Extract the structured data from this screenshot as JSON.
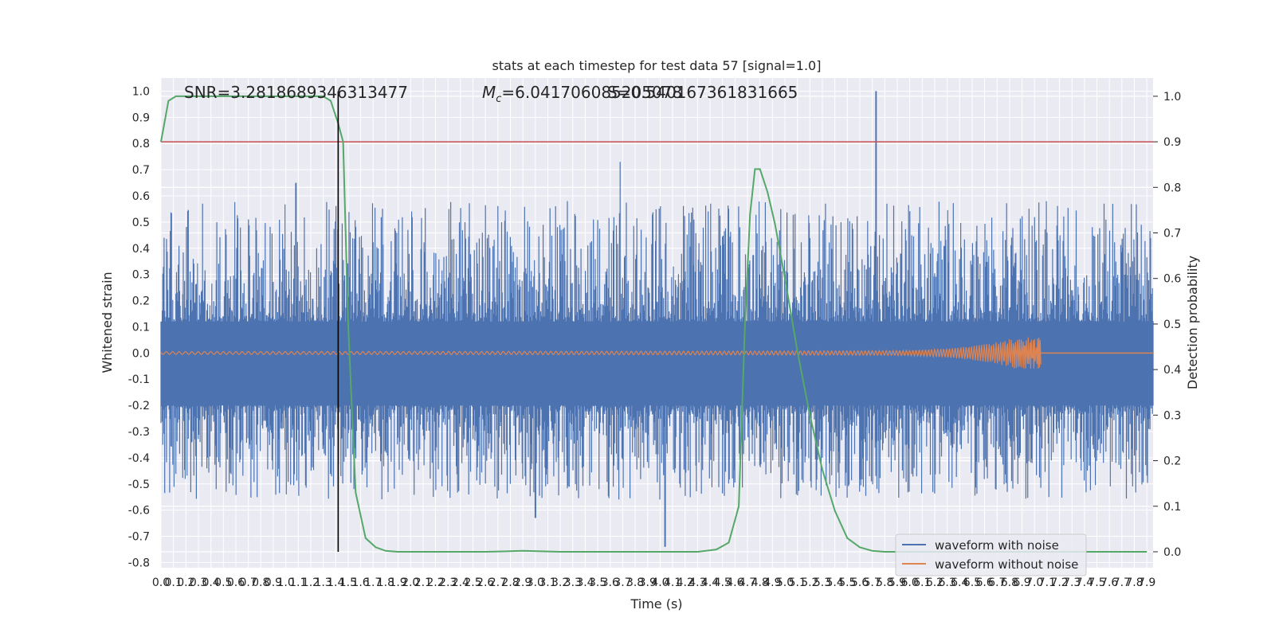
{
  "chart_data": {
    "type": "line",
    "title": "stats at each timestep for test data 57 [signal=1.0]",
    "xlabel": "Time (s)",
    "ylabel": "Whitened strain",
    "y2label": "Detection probability",
    "xlim": [
      0.0,
      7.95
    ],
    "ylim": [
      -0.82,
      1.05
    ],
    "y2lim": [
      -0.035,
      1.04
    ],
    "x_ticks": [
      0.0,
      0.1,
      0.2,
      0.3,
      0.4,
      0.5,
      0.6,
      0.7,
      0.8,
      0.9,
      1.0,
      1.1,
      1.2,
      1.3,
      1.4,
      1.5,
      1.6,
      1.7,
      1.8,
      1.9,
      2.0,
      2.1,
      2.2,
      2.3,
      2.4,
      2.5,
      2.6,
      2.7,
      2.8,
      2.9,
      3.0,
      3.1,
      3.2,
      3.3,
      3.4,
      3.5,
      3.6,
      3.7,
      3.8,
      3.9,
      4.0,
      4.1,
      4.2,
      4.3,
      4.4,
      4.5,
      4.6,
      4.7,
      4.8,
      4.9,
      5.0,
      5.1,
      5.2,
      5.3,
      5.4,
      5.5,
      5.6,
      5.7,
      5.8,
      5.9,
      6.0,
      6.1,
      6.2,
      6.3,
      6.4,
      6.5,
      6.6,
      6.7,
      6.8,
      6.9,
      7.0,
      7.1,
      7.2,
      7.3,
      7.4,
      7.5,
      7.6,
      7.7,
      7.8,
      7.9
    ],
    "y_ticks": [
      -0.8,
      -0.7,
      -0.6,
      -0.5,
      -0.4,
      -0.3,
      -0.2,
      -0.1,
      0.0,
      0.1,
      0.2,
      0.3,
      0.4,
      0.5,
      0.6,
      0.7,
      0.8,
      0.9,
      1.0
    ],
    "y2_ticks": [
      0.0,
      0.1,
      0.2,
      0.3,
      0.4,
      0.5,
      0.6,
      0.7,
      0.8,
      0.9,
      1.0
    ],
    "grid": true,
    "legend_placement": "lower-right",
    "series": [
      {
        "name": "waveform with noise",
        "color": "#4c72b0",
        "axis": "left",
        "kind": "noise",
        "spikes": [
          [
            4.04,
            -0.74
          ],
          [
            5.73,
            1.0
          ],
          [
            3.68,
            0.73
          ],
          [
            1.08,
            0.65
          ],
          [
            3.0,
            -0.63
          ]
        ]
      },
      {
        "name": "waveform without noise",
        "color": "#dd8452",
        "axis": "left",
        "kind": "chirp",
        "end_time": 7.05,
        "end_amplitude": 0.06
      },
      {
        "name": "",
        "color": "#55a868",
        "axis": "right",
        "kind": "probability",
        "x": [
          0.0,
          0.06,
          0.12,
          0.2,
          0.4,
          0.8,
          1.2,
          1.3,
          1.36,
          1.42,
          1.46,
          1.5,
          1.56,
          1.64,
          1.72,
          1.8,
          1.9,
          2.0,
          2.2,
          2.6,
          2.9,
          3.2,
          3.6,
          4.0,
          4.3,
          4.45,
          4.55,
          4.63,
          4.68,
          4.72,
          4.76,
          4.8,
          4.86,
          4.92,
          5.0,
          5.1,
          5.2,
          5.3,
          5.4,
          5.5,
          5.6,
          5.7,
          5.8,
          6.0,
          6.5,
          7.0,
          7.5,
          7.9
        ],
        "y": [
          0.9,
          0.99,
          1.0,
          1.0,
          1.0,
          1.0,
          1.0,
          1.0,
          0.99,
          0.94,
          0.9,
          0.5,
          0.13,
          0.03,
          0.01,
          0.002,
          0.0,
          0.0,
          0.0,
          0.0,
          0.002,
          0.0,
          0.0,
          0.0,
          0.0,
          0.005,
          0.02,
          0.1,
          0.5,
          0.74,
          0.84,
          0.84,
          0.79,
          0.72,
          0.6,
          0.44,
          0.3,
          0.18,
          0.09,
          0.03,
          0.01,
          0.002,
          0.0,
          0.0,
          0.0,
          0.0,
          0.0,
          0.0
        ]
      }
    ],
    "threshold": {
      "value": 0.9,
      "axis": "right",
      "color": "#c44e52"
    },
    "marker_time": 1.42,
    "annotations": {
      "snr": "SNR=3.2818689346313477",
      "mc_symbol": "M",
      "mc_sub": "c",
      "mc_value": "=6.041706085205078",
      "s_value": "S=0.540167361831665"
    }
  }
}
